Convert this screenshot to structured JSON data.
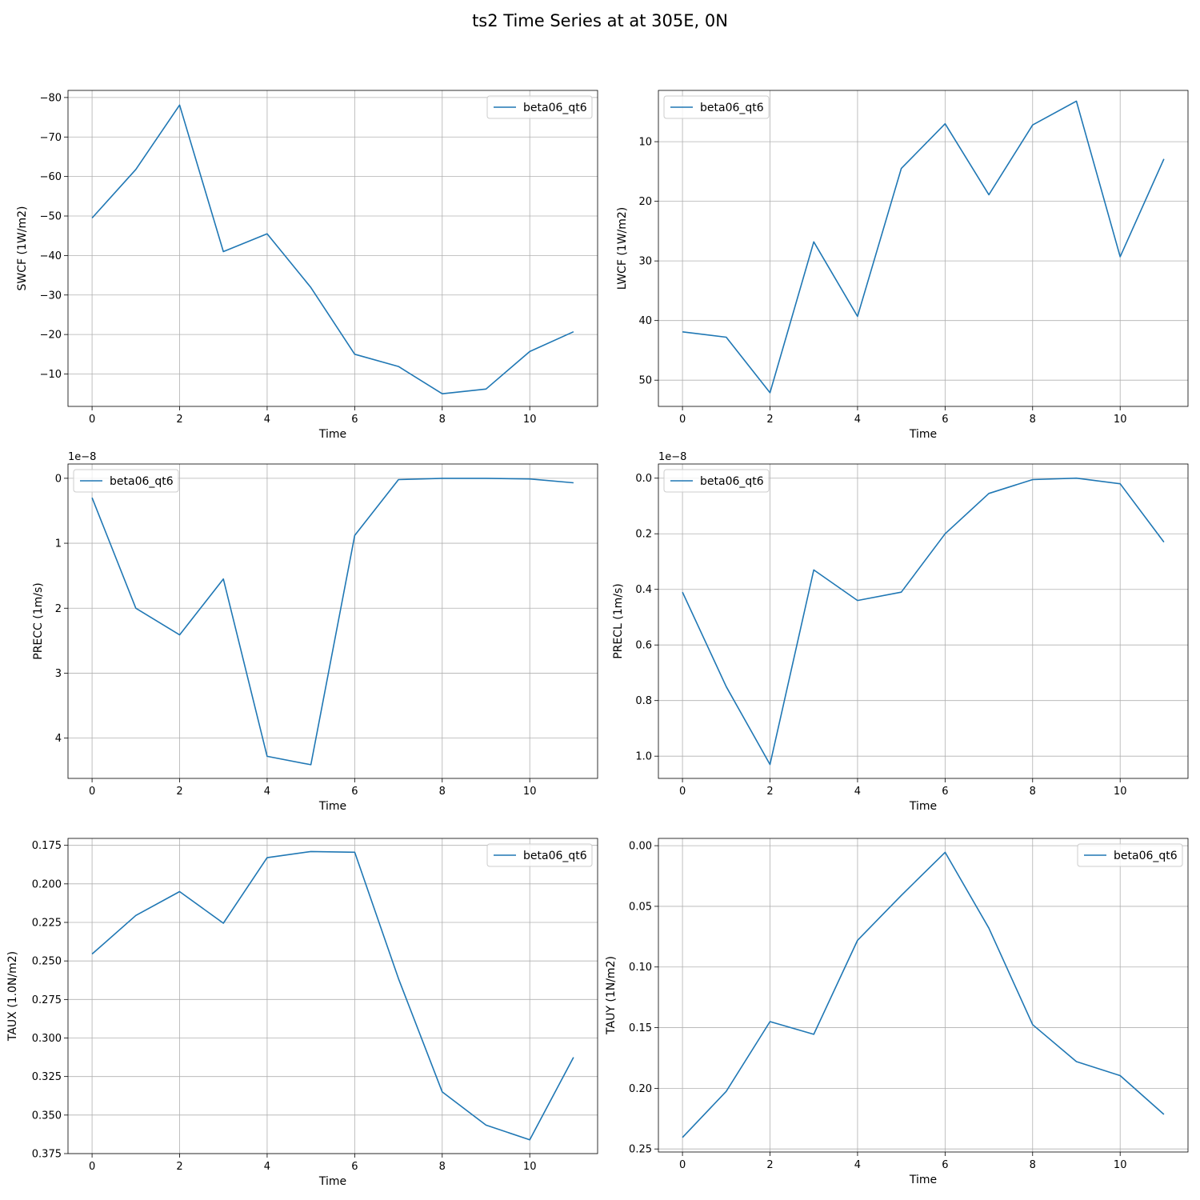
{
  "figure": {
    "title": "ts2 Time Series at at 305E, 0N"
  },
  "chart_data": [
    {
      "type": "line",
      "xlabel": "Time",
      "ylabel": "SWCF (1W/m2)",
      "y_inverted": true,
      "xlim": [
        -0.55,
        11.55
      ],
      "ylim": [
        -81.8,
        -1.8
      ],
      "xticks": [
        0,
        2,
        4,
        6,
        8,
        10
      ],
      "yticks": [
        -80,
        -70,
        -60,
        -50,
        -40,
        -30,
        -20,
        -10
      ],
      "ytick_labels": [
        "−80",
        "−70",
        "−60",
        "−50",
        "−40",
        "−30",
        "−20",
        "−10"
      ],
      "offset_text": "",
      "legend": "top-right",
      "grid": true,
      "series": [
        {
          "name": "beta06_qt6",
          "color": "#1f77b4",
          "x": [
            0,
            1,
            2,
            3,
            4,
            5,
            6,
            7,
            8,
            9,
            10,
            11
          ],
          "y": [
            -49.5,
            -61.8,
            -78.1,
            -41.0,
            -45.5,
            -31.9,
            -15.0,
            -11.9,
            -5.0,
            -6.2,
            -15.7,
            -20.7
          ]
        }
      ]
    },
    {
      "type": "line",
      "xlabel": "Time",
      "ylabel": "LWCF (1W/m2)",
      "y_inverted": true,
      "xlim": [
        -0.55,
        11.55
      ],
      "ylim": [
        1.4,
        54.4
      ],
      "xticks": [
        0,
        2,
        4,
        6,
        8,
        10
      ],
      "yticks": [
        10,
        20,
        30,
        40,
        50
      ],
      "ytick_labels": [
        "10",
        "20",
        "30",
        "40",
        "50"
      ],
      "offset_text": "",
      "legend": "top-left",
      "grid": true,
      "series": [
        {
          "name": "beta06_qt6",
          "color": "#1f77b4",
          "x": [
            0,
            1,
            2,
            3,
            4,
            5,
            6,
            7,
            8,
            9,
            10,
            11
          ],
          "y": [
            41.9,
            42.8,
            52.1,
            26.8,
            39.3,
            14.5,
            7.0,
            18.9,
            7.2,
            3.2,
            29.3,
            12.9
          ]
        }
      ]
    },
    {
      "type": "line",
      "xlabel": "Time",
      "ylabel": "PRECC (1m/s)",
      "y_inverted": true,
      "xlim": [
        -0.55,
        11.55
      ],
      "ylim": [
        -0.22,
        4.62
      ],
      "xticks": [
        0,
        2,
        4,
        6,
        8,
        10
      ],
      "yticks": [
        0,
        1,
        2,
        3,
        4
      ],
      "ytick_labels": [
        "0",
        "1",
        "2",
        "3",
        "4"
      ],
      "offset_text": "1e−8",
      "legend": "top-left",
      "grid": true,
      "series": [
        {
          "name": "beta06_qt6",
          "color": "#1f77b4",
          "x": [
            0,
            1,
            2,
            3,
            4,
            5,
            6,
            7,
            8,
            9,
            10,
            11
          ],
          "y": [
            0.3,
            2.0,
            2.41,
            1.55,
            4.28,
            4.41,
            0.88,
            0.02,
            0.0,
            0.0,
            0.01,
            0.07
          ]
        }
      ]
    },
    {
      "type": "line",
      "xlabel": "Time",
      "ylabel": "PRECL (1m/s)",
      "y_inverted": true,
      "xlim": [
        -0.55,
        11.55
      ],
      "ylim": [
        -0.051,
        1.08
      ],
      "xticks": [
        0,
        2,
        4,
        6,
        8,
        10
      ],
      "yticks": [
        0.0,
        0.2,
        0.4,
        0.6,
        0.8,
        1.0
      ],
      "ytick_labels": [
        "0.0",
        "0.2",
        "0.4",
        "0.6",
        "0.8",
        "1.0"
      ],
      "offset_text": "1e−8",
      "legend": "top-left",
      "grid": true,
      "series": [
        {
          "name": "beta06_qt6",
          "color": "#1f77b4",
          "x": [
            0,
            1,
            2,
            3,
            4,
            5,
            6,
            7,
            8,
            9,
            10,
            11
          ],
          "y": [
            0.41,
            0.75,
            1.03,
            0.33,
            0.44,
            0.41,
            0.2,
            0.055,
            0.005,
            0.0,
            0.02,
            0.23
          ]
        }
      ]
    },
    {
      "type": "line",
      "xlabel": "Time",
      "ylabel": "TAUX (1.0N/m2)",
      "y_inverted": true,
      "xlim": [
        -0.55,
        11.55
      ],
      "ylim": [
        0.1705,
        0.375
      ],
      "xticks": [
        0,
        2,
        4,
        6,
        8,
        10
      ],
      "yticks": [
        0.175,
        0.2,
        0.225,
        0.25,
        0.275,
        0.3,
        0.325,
        0.35,
        0.375
      ],
      "ytick_labels": [
        "0.175",
        "0.200",
        "0.225",
        "0.250",
        "0.275",
        "0.300",
        "0.325",
        "0.350",
        "0.375"
      ],
      "offset_text": "",
      "legend": "top-right",
      "grid": true,
      "series": [
        {
          "name": "beta06_qt6",
          "color": "#1f77b4",
          "x": [
            0,
            1,
            2,
            3,
            4,
            5,
            6,
            7,
            8,
            9,
            10,
            11
          ],
          "y": [
            0.2455,
            0.2205,
            0.205,
            0.2255,
            0.183,
            0.179,
            0.1795,
            0.2615,
            0.335,
            0.3565,
            0.366,
            0.3125
          ]
        }
      ]
    },
    {
      "type": "line",
      "xlabel": "Time",
      "ylabel": "TAUY (1N/m2)",
      "y_inverted": true,
      "xlim": [
        -0.55,
        11.55
      ],
      "ylim": [
        -0.006,
        0.2525
      ],
      "xticks": [
        0,
        2,
        4,
        6,
        8,
        10
      ],
      "yticks": [
        0.0,
        0.05,
        0.1,
        0.15,
        0.2,
        0.25
      ],
      "ytick_labels": [
        "0.00",
        "0.05",
        "0.10",
        "0.15",
        "0.20",
        "0.25"
      ],
      "offset_text": "",
      "legend": "top-right",
      "grid": true,
      "series": [
        {
          "name": "beta06_qt6",
          "color": "#1f77b4",
          "x": [
            0,
            1,
            2,
            3,
            4,
            5,
            6,
            7,
            8,
            9,
            10,
            11
          ],
          "y": [
            0.2405,
            0.2025,
            0.145,
            0.1555,
            0.078,
            0.041,
            0.0055,
            0.068,
            0.1475,
            0.178,
            0.1895,
            0.2215
          ]
        }
      ]
    }
  ]
}
